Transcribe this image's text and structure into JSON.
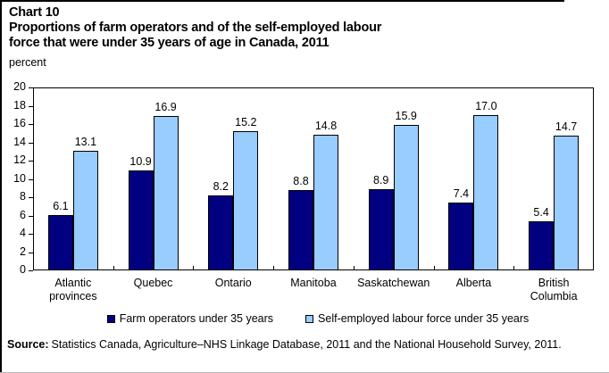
{
  "header": {
    "chart_number": "Chart 10",
    "title_line1": "Proportions of farm operators and of the self-employed labour",
    "title_line2": "force that were under 35 years of age in Canada, 2011",
    "unit_label": "percent"
  },
  "chart_data": {
    "type": "bar",
    "categories": [
      "Atlantic provinces",
      "Quebec",
      "Ontario",
      "Manitoba",
      "Saskatchewan",
      "Alberta",
      "British Columbia"
    ],
    "series": [
      {
        "name": "Farm operators under 35 years",
        "color": "#000080",
        "values": [
          6.1,
          10.9,
          8.2,
          8.8,
          8.9,
          7.4,
          5.4
        ]
      },
      {
        "name": "Self-employed labour force under 35 years",
        "color": "#99CCFF",
        "values": [
          13.1,
          16.9,
          15.2,
          14.8,
          15.9,
          17.0,
          14.7
        ]
      }
    ],
    "ylabel": "percent",
    "ylim": [
      0,
      20
    ],
    "ytick_step": 2,
    "grid": false,
    "legend_position": "bottom",
    "value_labels": true,
    "axis_color": "#000000"
  },
  "source": {
    "label": "Source:",
    "text": "Statistics Canada, Agriculture–NHS Linkage Database, 2011 and the National Household Survey, 2011."
  }
}
